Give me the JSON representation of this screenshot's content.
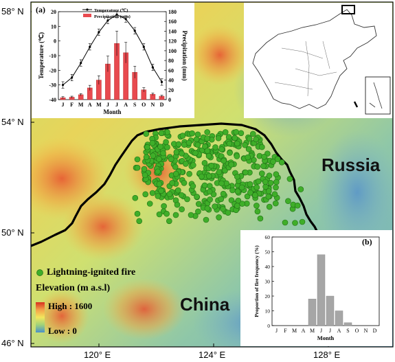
{
  "axes": {
    "lat_labels": [
      "58° N",
      "54° N",
      "50° N",
      "46° N"
    ],
    "lon_labels": [
      "120° E",
      "124° E",
      "128° E"
    ]
  },
  "countries": {
    "north": "Russia",
    "south": "China"
  },
  "legend": {
    "fire_label": "Lightning-ignited fire",
    "elevation_title": "Elevation (m a.s.l)",
    "high_label": "High : 1600",
    "low_label": "Low : 0"
  },
  "colors": {
    "fire_point": "#3fae29",
    "border": "#000000",
    "bar_red": "#e84a4f",
    "bar_grey": "#a6a6a6"
  },
  "chart_data": [
    {
      "type": "bar",
      "panel": "(a)",
      "categories": [
        "J",
        "F",
        "M",
        "A",
        "M",
        "J",
        "J",
        "A",
        "S",
        "O",
        "N",
        "D"
      ],
      "xlabel": "Month",
      "ylabel_left": "Temperature (℃)",
      "ylabel_right": "Precipitation (mm)",
      "ylim_left": [
        -40,
        20
      ],
      "ylim_right": [
        0,
        180
      ],
      "yticks_left": [
        -40,
        -30,
        -20,
        -10,
        0,
        10,
        20
      ],
      "yticks_right": [
        0,
        20,
        40,
        60,
        80,
        100,
        120,
        140,
        160,
        180
      ],
      "legend": [
        "Temperature (℃)",
        "Precipitation (mm)"
      ],
      "series": [
        {
          "name": "Temperature (℃)",
          "type": "line",
          "values": [
            -30,
            -25,
            -15,
            -4,
            6,
            14,
            18,
            15,
            7,
            -4,
            -18,
            -28
          ]
        },
        {
          "name": "Precipitation (mm)",
          "type": "bar",
          "values": [
            4,
            5,
            10,
            24,
            40,
            73,
            115,
            96,
            56,
            20,
            11,
            7
          ]
        }
      ]
    },
    {
      "type": "bar",
      "panel": "(b)",
      "categories": [
        "J",
        "F",
        "M",
        "A",
        "M",
        "J",
        "J",
        "A",
        "S",
        "O",
        "N",
        "D"
      ],
      "xlabel": "Month",
      "ylabel": "Proportion of fire frequency (%)",
      "ylim": [
        0,
        60
      ],
      "yticks": [
        0,
        10,
        20,
        30,
        40,
        50,
        60
      ],
      "values": [
        0,
        0,
        0,
        0,
        18,
        48,
        20,
        10,
        2,
        0,
        0,
        0
      ]
    }
  ]
}
